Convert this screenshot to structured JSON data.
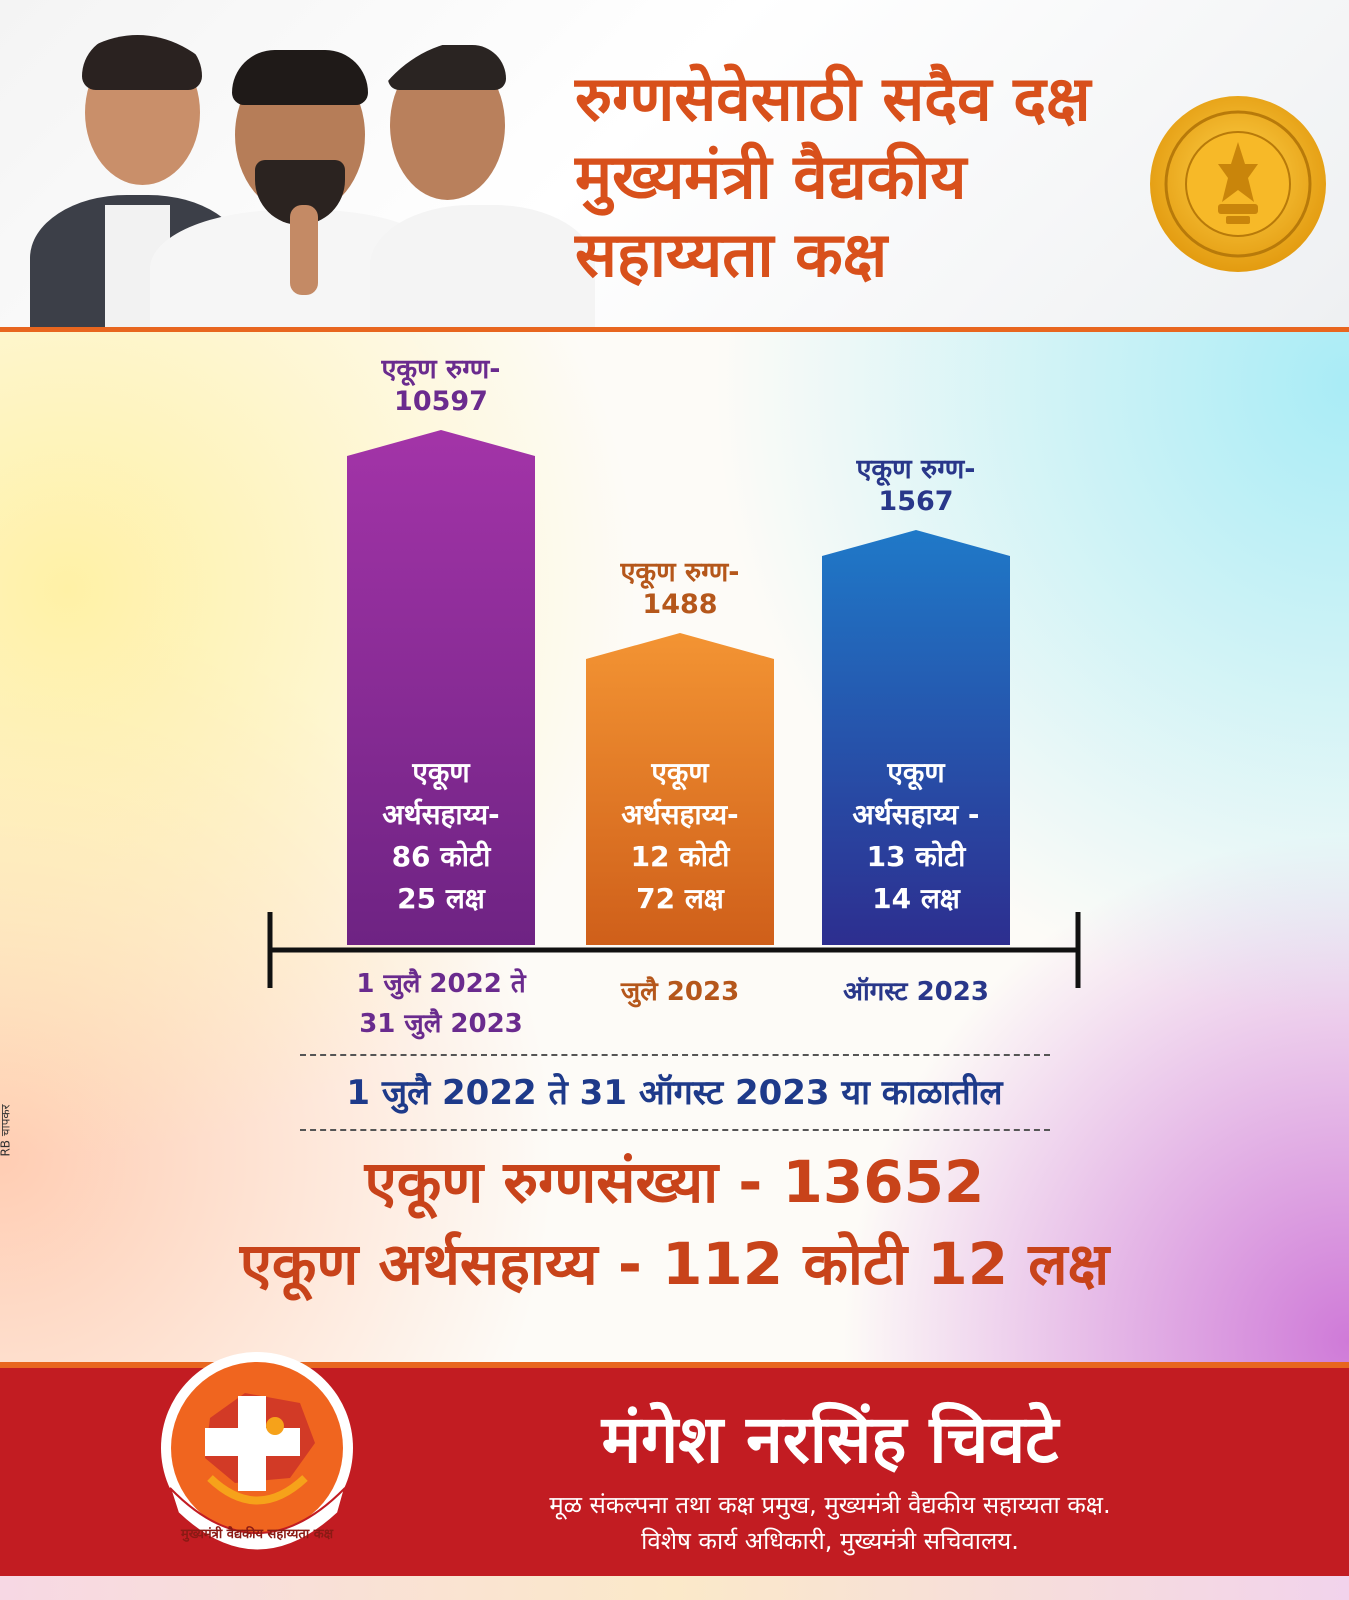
{
  "header": {
    "headline_lines": [
      "रुग्णसेवेसाठी सदैव दक्ष",
      "मुख्यमंत्री वैद्यकीय",
      "सहाय्यता कक्ष"
    ]
  },
  "side_mark": "RB चापकर",
  "chart_data": {
    "type": "bar",
    "categories": [
      "1 जुलै 2022 ते\n31 जुलै 2023",
      "जुलै 2023",
      "ऑगस्ट 2023"
    ],
    "series": [
      {
        "values": [
          10597,
          1488,
          1567
        ]
      }
    ],
    "top_labels": [
      [
        "एकूण रुग्ण-",
        "10597"
      ],
      [
        "एकूण रुग्ण-",
        "1488"
      ],
      [
        "एकूण रुग्ण-",
        "1567"
      ]
    ],
    "inner_labels": [
      [
        "एकूण",
        "अर्थसहाय्य-",
        "86 कोटी",
        "25 लक्ष"
      ],
      [
        "एकूण",
        "अर्थसहाय्य-",
        "12 कोटी",
        "72 लक्ष"
      ],
      [
        "एकूण",
        "अर्थसहाय्य -",
        "13 कोटी",
        "14 लक्ष"
      ]
    ],
    "x_labels": [
      [
        "1 जुलै 2022 ते",
        "31 जुलै 2023"
      ],
      [
        "जुलै 2023"
      ],
      [
        "ऑगस्ट 2023"
      ]
    ],
    "bar_colors": [
      [
        "#a334a8",
        "#6e2383"
      ],
      [
        "#f39433",
        "#cf5f1a"
      ],
      [
        "#1f79c8",
        "#2d2e8f"
      ]
    ],
    "top_label_colors": [
      "#6a2b8e",
      "#b5571b",
      "#29378a"
    ],
    "x_label_colors": [
      "#6a2b8e",
      "#b5571b",
      "#29378a"
    ]
  },
  "summary": {
    "period": "1 जुलै 2022 ते 31 ऑगस्ट 2023 या काळातील",
    "total_patients": "एकूण रुग्णसंख्या - 13652",
    "total_aid": "एकूण अर्थसहाय्य - 112 कोटी 12 लक्ष"
  },
  "footer": {
    "logo_text": "मुख्यमंत्री वैद्यकीय सहाय्यता कक्ष",
    "name": "मंगेश नरसिंह चिवटे",
    "role_line1": "मूळ संकल्पना तथा कक्ष प्रमुख, मुख्यमंत्री वैद्यकीय सहाय्यता कक्ष.",
    "role_line2": "विशेष कार्य अधिकारी, मुख्यमंत्री सचिवालय."
  },
  "colors": {
    "accent_orange": "#e8661f",
    "headline": "#d8501b",
    "footer_red": "#c21c22",
    "period_blue": "#1e3a8a"
  }
}
